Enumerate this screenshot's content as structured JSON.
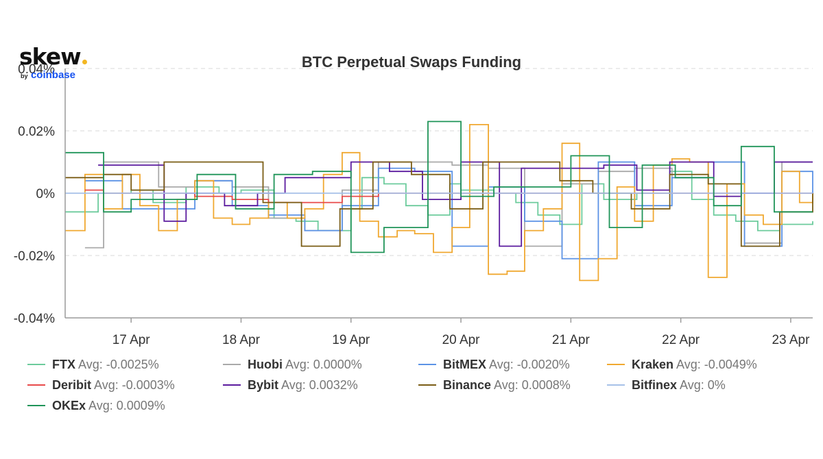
{
  "brand": {
    "word": "skew",
    "by": "by",
    "company": "coinbase",
    "dot_color": "#f3b722",
    "company_color": "#1652f0"
  },
  "chart_data": {
    "type": "line",
    "title": "BTC Perpetual Swaps Funding",
    "xlabel": "",
    "ylabel": "",
    "x_unit": "day (April, fractional)",
    "xlim": [
      16.4,
      23.2
    ],
    "ylim": [
      -0.04,
      0.04
    ],
    "y_ticks": [
      0.04,
      0.02,
      0,
      -0.02,
      -0.04
    ],
    "y_tick_labels": [
      "0.04%",
      "0.02%",
      "0%",
      "-0.02%",
      "-0.04%"
    ],
    "x_ticks": [
      17,
      18,
      19,
      20,
      21,
      22,
      23
    ],
    "x_tick_labels": [
      "17 Apr",
      "18 Apr",
      "19 Apr",
      "20 Apr",
      "21 Apr",
      "22 Apr",
      "23 Apr"
    ],
    "grid": "horizontal-dashed",
    "legend_position": "bottom",
    "series": [
      {
        "name": "FTX",
        "avg_label": "Avg: -0.0025%",
        "color": "#6ccb9c",
        "step": "hourly",
        "x": [
          16.4,
          16.7,
          17.0,
          17.2,
          17.5,
          17.8,
          18.0,
          18.3,
          18.5,
          18.7,
          19.0,
          19.1,
          19.3,
          19.5,
          19.7,
          19.9,
          20.0,
          20.3,
          20.5,
          20.7,
          20.9,
          21.1,
          21.3,
          21.6,
          21.9,
          22.1,
          22.3,
          22.5,
          22.7,
          22.9,
          23.2
        ],
        "y": [
          -0.006,
          0.0,
          0.001,
          -0.003,
          0.002,
          0.0,
          0.001,
          -0.008,
          -0.009,
          -0.012,
          -0.005,
          0.005,
          0.003,
          -0.004,
          -0.007,
          0.003,
          0.001,
          0.0,
          -0.003,
          -0.007,
          -0.01,
          0.003,
          -0.002,
          0.0,
          0.007,
          -0.002,
          -0.007,
          -0.009,
          -0.012,
          -0.01,
          -0.009
        ]
      },
      {
        "name": "Huobi",
        "avg_label": "Avg: 0.0000%",
        "color": "#a9a9a9",
        "step": "8h",
        "x": [
          16.58,
          16.75,
          17.25,
          17.58,
          17.92,
          18.25,
          18.58,
          18.92,
          19.25,
          19.58,
          19.92,
          20.25,
          20.58,
          20.92,
          21.25,
          21.58,
          21.92,
          22.25,
          22.58,
          22.92
        ],
        "y": [
          -0.0175,
          0.01,
          0.002,
          0.004,
          0.002,
          -0.008,
          -0.012,
          0.001,
          0.01,
          0.01,
          0.009,
          0.008,
          -0.017,
          0.003,
          0.007,
          0.008,
          0.005,
          0.01,
          -0.016,
          0.01
        ]
      },
      {
        "name": "BitMEX",
        "avg_label": "Avg: -0.0020%",
        "color": "#5b92e5",
        "step": "8h",
        "x": [
          16.58,
          16.92,
          17.25,
          17.58,
          17.92,
          18.25,
          18.58,
          18.92,
          19.25,
          19.58,
          19.92,
          20.25,
          20.58,
          20.92,
          21.25,
          21.58,
          21.92,
          22.25,
          22.58,
          22.92,
          23.2
        ],
        "y": [
          0.004,
          -0.005,
          -0.005,
          0.004,
          -0.004,
          -0.007,
          -0.012,
          -0.004,
          0.008,
          0.007,
          -0.017,
          0.002,
          -0.009,
          -0.021,
          0.01,
          -0.004,
          0.005,
          0.01,
          -0.017,
          0.007,
          0.0
        ]
      },
      {
        "name": "Kraken",
        "avg_label": "Avg: -0.0049%",
        "color": "#f0a830",
        "step": "4h",
        "x": [
          16.4,
          16.58,
          16.75,
          16.92,
          17.08,
          17.25,
          17.42,
          17.58,
          17.75,
          17.92,
          18.08,
          18.25,
          18.42,
          18.58,
          18.75,
          18.92,
          19.08,
          19.25,
          19.42,
          19.58,
          19.75,
          19.92,
          20.08,
          20.25,
          20.42,
          20.58,
          20.75,
          20.92,
          21.08,
          21.25,
          21.42,
          21.58,
          21.75,
          21.92,
          22.08,
          22.25,
          22.42,
          22.58,
          22.75,
          22.92,
          23.08,
          23.2
        ],
        "y": [
          -0.012,
          0.006,
          -0.005,
          0.006,
          -0.004,
          -0.012,
          -0.002,
          0.004,
          -0.008,
          -0.01,
          -0.008,
          -0.003,
          -0.008,
          -0.005,
          0.006,
          0.013,
          -0.009,
          -0.014,
          -0.012,
          -0.013,
          -0.019,
          -0.011,
          0.022,
          -0.026,
          -0.025,
          -0.012,
          -0.005,
          0.016,
          -0.028,
          -0.021,
          0.002,
          -0.009,
          0.009,
          0.011,
          0.01,
          -0.027,
          0.003,
          -0.007,
          -0.01,
          0.007,
          -0.003,
          0.0
        ]
      },
      {
        "name": "Deribit",
        "avg_label": "Avg: -0.0003%",
        "color": "#e84a4a",
        "step": "8h",
        "x": [
          16.58,
          16.75,
          17.25,
          17.58,
          17.92,
          18.25,
          18.58,
          18.92,
          19.25,
          19.58,
          19.92,
          20.25,
          20.58,
          20.92,
          21.25,
          21.58,
          21.92,
          22.25,
          22.58,
          22.92,
          23.2
        ],
        "y": [
          0.001,
          0.0,
          0.0,
          -0.001,
          -0.002,
          -0.003,
          -0.003,
          -0.001,
          0.0,
          0.0,
          0.0,
          0.0,
          0.0,
          0.0,
          0.0,
          0.0,
          0.0,
          0.0,
          0.0,
          0.0,
          0.0
        ]
      },
      {
        "name": "Bybit",
        "avg_label": "Avg: 0.0032%",
        "color": "#5a1a9e",
        "step": "8h",
        "x": [
          16.7,
          17.0,
          17.3,
          17.5,
          17.85,
          18.15,
          18.4,
          18.7,
          19.0,
          19.35,
          19.65,
          20.0,
          20.35,
          20.55,
          20.85,
          21.0,
          21.3,
          21.6,
          21.9,
          22.3,
          22.55,
          22.85,
          23.2
        ],
        "y": [
          0.009,
          0.009,
          -0.009,
          0.0,
          -0.004,
          0.0,
          0.005,
          0.005,
          0.01,
          0.007,
          -0.002,
          0.01,
          -0.017,
          0.008,
          0.008,
          0.008,
          0.009,
          0.001,
          0.01,
          -0.001,
          0.0,
          0.01,
          0.01
        ]
      },
      {
        "name": "Binance",
        "avg_label": "Avg: 0.0008%",
        "color": "#7a5c14",
        "step": "8h",
        "x": [
          16.4,
          16.75,
          17.0,
          17.3,
          17.6,
          17.9,
          18.2,
          18.55,
          18.9,
          19.2,
          19.55,
          19.9,
          20.2,
          20.55,
          20.9,
          21.2,
          21.55,
          21.9,
          22.25,
          22.55,
          22.9,
          23.2
        ],
        "y": [
          0.005,
          0.006,
          0.001,
          0.01,
          0.01,
          0.01,
          -0.003,
          -0.017,
          -0.005,
          0.01,
          0.006,
          -0.005,
          0.01,
          0.01,
          0.004,
          0.0,
          -0.005,
          0.006,
          0.003,
          -0.017,
          -0.006,
          0.0
        ]
      },
      {
        "name": "Bitfinex",
        "avg_label": "Avg: 0%",
        "color": "#a6c1e8",
        "step": "flat",
        "x": [
          16.4,
          23.2
        ],
        "y": [
          0.0,
          0.0
        ]
      },
      {
        "name": "OKEx",
        "avg_label": "Avg: 0.0009%",
        "color": "#1f9458",
        "step": "8h",
        "x": [
          16.4,
          16.75,
          17.0,
          17.3,
          17.6,
          17.95,
          18.3,
          18.65,
          19.0,
          19.3,
          19.7,
          20.0,
          20.3,
          20.65,
          21.0,
          21.35,
          21.65,
          21.95,
          22.3,
          22.55,
          22.85,
          23.2
        ],
        "y": [
          0.013,
          -0.006,
          -0.002,
          -0.002,
          0.006,
          -0.005,
          0.006,
          0.007,
          -0.019,
          -0.011,
          0.023,
          -0.001,
          0.002,
          0.002,
          0.012,
          -0.011,
          0.009,
          0.005,
          -0.004,
          0.015,
          -0.006,
          -0.006
        ]
      }
    ]
  }
}
